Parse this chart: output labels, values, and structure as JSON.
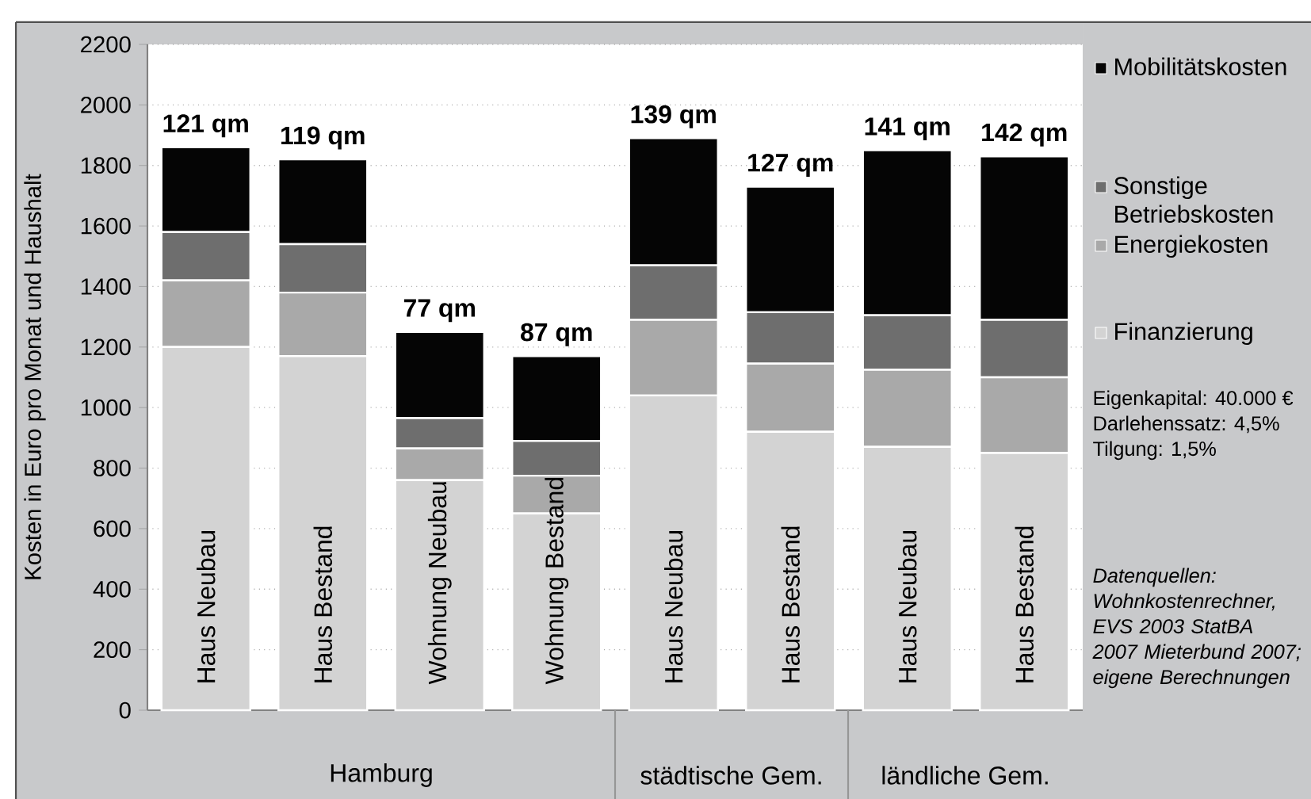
{
  "chart_data": {
    "type": "bar",
    "stacked": true,
    "ylabel": "Kosten in Euro pro Monat und Haushalt",
    "categories": [
      "Haus Neubau",
      "Haus Bestand",
      "Wohnung Neubau",
      "Wohnung Bestand",
      "Haus Neubau",
      "Haus Bestand",
      "Haus Neubau",
      "Haus Bestand"
    ],
    "series": [
      {
        "name": "Finanzierung",
        "color": "#d3d3d3",
        "values": [
          1200,
          1170,
          760,
          650,
          1040,
          920,
          870,
          850
        ]
      },
      {
        "name": "Energiekosten",
        "color": "#a9a9a9",
        "values": [
          220,
          210,
          105,
          125,
          250,
          225,
          255,
          250
        ]
      },
      {
        "name": "Sonstige Betriebskosten",
        "color": "#6e6e6e",
        "values": [
          160,
          160,
          100,
          115,
          180,
          170,
          180,
          190
        ]
      },
      {
        "name": "Mobilitätskosten",
        "color": "#050505",
        "values": [
          280,
          280,
          285,
          280,
          420,
          415,
          545,
          540
        ]
      }
    ],
    "ylim": [
      0,
      2200
    ],
    "yticks": [
      0,
      200,
      400,
      600,
      800,
      1000,
      1200,
      1400,
      1600,
      1800,
      2000,
      2200
    ],
    "grid": "y",
    "legend": "right",
    "annotations": [
      "121 qm",
      "119 qm",
      "77 qm",
      "87 qm",
      "139 qm",
      "127 qm",
      "141 qm",
      "142 qm",
      "Hamburg",
      "städtische Gem.",
      "ländliche Gem.",
      "Eigenkapital: 40.000 €",
      "Darlehenssatz: 4,5%",
      "Tilgung: 1,5%",
      "Datenquellen: Wohnkostenrechner, EVS 2003 StatBA 2007 Mieterbund 2007; eigene Berechnungen"
    ]
  }
}
